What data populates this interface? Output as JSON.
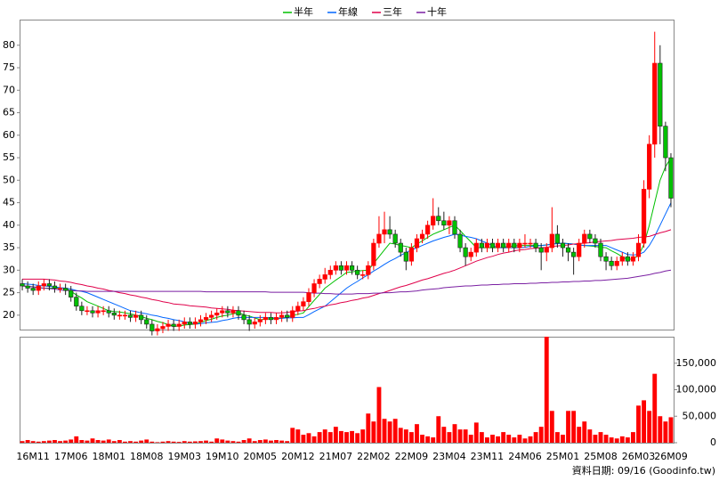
{
  "chart_data": {
    "type": "candlestick",
    "categories": [
      null,
      null,
      "16M11",
      null,
      null,
      null,
      null,
      null,
      null,
      "17M06",
      null,
      null,
      null,
      null,
      null,
      null,
      "18M01",
      null,
      null,
      null,
      null,
      null,
      null,
      "18M08",
      null,
      null,
      null,
      null,
      null,
      null,
      "19M03",
      null,
      null,
      null,
      null,
      null,
      null,
      "19M10",
      null,
      null,
      null,
      null,
      null,
      null,
      "20M05",
      null,
      null,
      null,
      null,
      null,
      null,
      "20M12",
      null,
      null,
      null,
      null,
      null,
      null,
      "21M07",
      null,
      null,
      null,
      null,
      null,
      null,
      "22M02",
      null,
      null,
      null,
      null,
      null,
      null,
      "22M09",
      null,
      null,
      null,
      null,
      null,
      null,
      "23M04",
      null,
      null,
      null,
      null,
      null,
      null,
      "23M11",
      null,
      null,
      null,
      null,
      null,
      null,
      "24M06",
      null,
      null,
      null,
      null,
      null,
      null,
      "25M01",
      null,
      null,
      null,
      null,
      null,
      null,
      "25M08",
      null,
      null,
      null,
      null,
      null,
      null,
      "26M03",
      null,
      null,
      null,
      null,
      null,
      "26M09"
    ],
    "ohlc": [
      [
        27,
        28,
        25.5,
        26.5
      ],
      [
        26.5,
        27.5,
        25,
        26
      ],
      [
        26,
        27,
        24.5,
        25.5
      ],
      [
        25.5,
        27.5,
        24.5,
        26.5
      ],
      [
        26.5,
        28,
        25.5,
        27
      ],
      [
        27,
        28,
        25.5,
        26.5
      ],
      [
        26.5,
        27.5,
        25,
        26
      ],
      [
        26,
        27,
        25,
        26
      ],
      [
        26,
        27,
        24.5,
        25.5
      ],
      [
        25.5,
        26.5,
        23,
        24
      ],
      [
        24,
        25,
        21,
        22
      ],
      [
        22,
        23,
        20,
        21
      ],
      [
        21,
        22,
        20,
        21
      ],
      [
        21,
        22,
        19.5,
        20.5
      ],
      [
        20.5,
        22,
        19.5,
        21
      ],
      [
        21,
        22,
        20,
        21
      ],
      [
        21,
        22,
        19.5,
        20.5
      ],
      [
        20.5,
        21.5,
        19,
        20
      ],
      [
        20,
        21,
        19,
        20
      ],
      [
        20,
        21,
        19,
        20
      ],
      [
        20,
        21,
        18.5,
        19.5
      ],
      [
        19.5,
        21,
        18.5,
        20
      ],
      [
        20,
        21,
        18,
        19
      ],
      [
        19,
        20,
        17,
        18
      ],
      [
        18,
        19,
        15.5,
        16.5
      ],
      [
        16.5,
        18,
        15.5,
        17
      ],
      [
        17,
        18.5,
        16,
        17.5
      ],
      [
        17.5,
        19,
        16.5,
        18
      ],
      [
        18,
        19,
        16.5,
        17.5
      ],
      [
        17.5,
        19,
        16.5,
        18
      ],
      [
        18,
        19.5,
        17,
        18.5
      ],
      [
        18.5,
        19.5,
        17,
        18
      ],
      [
        18,
        19.5,
        17,
        18.5
      ],
      [
        18.5,
        20,
        17.5,
        19
      ],
      [
        19,
        20.5,
        18,
        19.5
      ],
      [
        19.5,
        21,
        18.5,
        20
      ],
      [
        20,
        21.5,
        19,
        20.5
      ],
      [
        20.5,
        22,
        19.5,
        21
      ],
      [
        21,
        22,
        19.5,
        20.5
      ],
      [
        20.5,
        22,
        19.5,
        21
      ],
      [
        21,
        22,
        19,
        20
      ],
      [
        20,
        21,
        18,
        19
      ],
      [
        19,
        20,
        16.5,
        18
      ],
      [
        18,
        19.5,
        17,
        18.5
      ],
      [
        18.5,
        20,
        17.5,
        19
      ],
      [
        19,
        20.5,
        18,
        19.5
      ],
      [
        19.5,
        20.5,
        18,
        19
      ],
      [
        19,
        20.5,
        18,
        19.5
      ],
      [
        19.5,
        21,
        18.5,
        20
      ],
      [
        20,
        21,
        18.5,
        19.5
      ],
      [
        19.5,
        22,
        18.5,
        21
      ],
      [
        21,
        23,
        20,
        22
      ],
      [
        22,
        24,
        21,
        23
      ],
      [
        23,
        26,
        22,
        25
      ],
      [
        25,
        28,
        24,
        27
      ],
      [
        27,
        29,
        26,
        28
      ],
      [
        28,
        30.5,
        27,
        29
      ],
      [
        29,
        31,
        28,
        30
      ],
      [
        30,
        32,
        29,
        31
      ],
      [
        31,
        32,
        29,
        30
      ],
      [
        30,
        32,
        29,
        31
      ],
      [
        31,
        32,
        29,
        30
      ],
      [
        30,
        31,
        28,
        29
      ],
      [
        29,
        30,
        28,
        29
      ],
      [
        29,
        32,
        28,
        31
      ],
      [
        31,
        37,
        30,
        36
      ],
      [
        36,
        42,
        35,
        38
      ],
      [
        38,
        43,
        36,
        39
      ],
      [
        39,
        42,
        37,
        38
      ],
      [
        38,
        39,
        35,
        36
      ],
      [
        36,
        37,
        33,
        34
      ],
      [
        34,
        35,
        30,
        32
      ],
      [
        32,
        36,
        31,
        35
      ],
      [
        35,
        38,
        34,
        37
      ],
      [
        37,
        39,
        36,
        38
      ],
      [
        38,
        41,
        37,
        40
      ],
      [
        40,
        46,
        39,
        42
      ],
      [
        42,
        44,
        40,
        41
      ],
      [
        41,
        43,
        39,
        40
      ],
      [
        40,
        42,
        38,
        41
      ],
      [
        41,
        42,
        37,
        38
      ],
      [
        38,
        39,
        34,
        35
      ],
      [
        35,
        36,
        31,
        33
      ],
      [
        33,
        35,
        32,
        34
      ],
      [
        34,
        37,
        33,
        36
      ],
      [
        36,
        37,
        34,
        35
      ],
      [
        35,
        37,
        34,
        36
      ],
      [
        36,
        37,
        34,
        35
      ],
      [
        35,
        37,
        34,
        36
      ],
      [
        36,
        37,
        34,
        35
      ],
      [
        35,
        37,
        34,
        36
      ],
      [
        36,
        37,
        34,
        35
      ],
      [
        35,
        37,
        34,
        36
      ],
      [
        36,
        38,
        35,
        36
      ],
      [
        36,
        37,
        35,
        36
      ],
      [
        36,
        37,
        34,
        35
      ],
      [
        35,
        36,
        30,
        34
      ],
      [
        34,
        36,
        32,
        35
      ],
      [
        35,
        44,
        34,
        38
      ],
      [
        38,
        40,
        35,
        36
      ],
      [
        36,
        37,
        33,
        35
      ],
      [
        35,
        36,
        32,
        34
      ],
      [
        34,
        35,
        29,
        33
      ],
      [
        33,
        37,
        32,
        36
      ],
      [
        36,
        39,
        35,
        38
      ],
      [
        38,
        39,
        36,
        37
      ],
      [
        37,
        38,
        35,
        36
      ],
      [
        36,
        37,
        32,
        33
      ],
      [
        33,
        34,
        30,
        32
      ],
      [
        32,
        33,
        30,
        31
      ],
      [
        31,
        33,
        30,
        32
      ],
      [
        32,
        34,
        31,
        33
      ],
      [
        33,
        34,
        31,
        32
      ],
      [
        32,
        34,
        31,
        33
      ],
      [
        33,
        38,
        32,
        36
      ],
      [
        36,
        50,
        35,
        48
      ],
      [
        48,
        60,
        46,
        58
      ],
      [
        58,
        83,
        55,
        76
      ],
      [
        76,
        80,
        58,
        62
      ],
      [
        62,
        63,
        52,
        55
      ],
      [
        55,
        56,
        44,
        46
      ]
    ],
    "up_color": "#ff0000",
    "down_color": "#00c000",
    "ylim": [
      16.8,
      85.7
    ],
    "yticks": [
      20,
      25,
      30,
      35,
      40,
      45,
      50,
      55,
      60,
      65,
      70,
      75,
      80
    ],
    "series": [
      {
        "name": "半年",
        "color": "#00c000",
        "values": [
          26.5,
          26.4,
          26.3,
          26.1,
          26,
          26,
          26,
          26,
          26,
          25.3,
          24.5,
          23.8,
          23,
          22.5,
          22,
          21.5,
          21,
          20.8,
          20.7,
          20.5,
          20.3,
          20,
          19.7,
          19.3,
          19,
          18.6,
          18.3,
          17.9,
          17.5,
          17.6,
          17.8,
          17.9,
          18,
          18.4,
          18.8,
          19.1,
          19.5,
          19.8,
          20,
          20.3,
          20.5,
          20.1,
          19.8,
          19.4,
          19,
          19.1,
          19.2,
          19.2,
          19.3,
          19.6,
          19.9,
          20.2,
          20.5,
          21.9,
          23.3,
          24.6,
          26,
          26.9,
          27.8,
          28.6,
          29.5,
          29.6,
          29.8,
          29.9,
          30,
          31.5,
          33,
          34.5,
          36,
          35.8,
          35.5,
          35.3,
          35,
          35.8,
          36.5,
          37.3,
          38,
          38.5,
          39,
          39.5,
          40,
          38.8,
          37.5,
          36.3,
          35,
          35,
          35,
          35,
          35,
          35.1,
          35.3,
          35.4,
          35.5,
          35.5,
          35.5,
          35.5,
          35.5,
          35.6,
          35.8,
          35.9,
          36,
          35.9,
          35.8,
          35.6,
          35.5,
          35.4,
          35.3,
          35.1,
          35,
          34.3,
          33.7,
          33,
          32.3,
          32.6,
          33.2,
          35.7,
          40,
          45,
          50,
          53,
          55
        ]
      },
      {
        "name": "年線",
        "color": "#0066ff",
        "values": [
          27,
          26.9,
          26.8,
          26.6,
          26.5,
          26.4,
          26.3,
          26.1,
          26,
          25.8,
          25.5,
          25.3,
          25,
          24.5,
          24,
          23.5,
          23,
          22.5,
          22,
          21.5,
          21,
          20.8,
          20.5,
          20.3,
          20,
          19.8,
          19.5,
          19.3,
          19,
          18.8,
          18.5,
          18.3,
          18,
          18.1,
          18.3,
          18.4,
          18.5,
          18.8,
          19,
          19.3,
          19.5,
          19.5,
          19.5,
          19.5,
          19.5,
          19.5,
          19.4,
          19.4,
          19.3,
          19.4,
          19.4,
          19.5,
          19.5,
          20.1,
          20.8,
          21.4,
          22,
          23,
          24,
          25,
          26,
          26.8,
          27.5,
          28.3,
          29,
          29.8,
          30.5,
          31.3,
          32,
          32.6,
          33.3,
          33.9,
          34.5,
          35,
          35.5,
          36,
          36.5,
          36.9,
          37.3,
          37.6,
          38,
          37.8,
          37.5,
          37.3,
          37,
          36.5,
          36,
          35.5,
          35,
          35,
          35,
          35,
          35,
          35.1,
          35.3,
          35.4,
          35.5,
          35.6,
          35.8,
          35.9,
          36,
          35.9,
          35.8,
          35.6,
          35.5,
          35.5,
          35.5,
          35.5,
          35.5,
          35,
          34.5,
          34,
          33.5,
          33.4,
          33.5,
          34,
          35.5,
          37.5,
          40,
          42.5,
          45
        ]
      },
      {
        "name": "三年",
        "color": "#e0004a",
        "values": [
          28,
          28,
          28,
          28,
          28,
          27.9,
          27.8,
          27.6,
          27.5,
          27.3,
          27,
          26.8,
          26.5,
          26.3,
          26,
          25.8,
          25.5,
          25.3,
          25,
          24.8,
          24.5,
          24.3,
          24,
          23.8,
          23.5,
          23.3,
          23,
          22.8,
          22.5,
          22.4,
          22.3,
          22.1,
          22,
          21.9,
          21.8,
          21.6,
          21.5,
          21.4,
          21.3,
          21.1,
          21,
          20.9,
          20.8,
          20.7,
          20.6,
          20.6,
          20.6,
          20.5,
          20.5,
          20.6,
          20.8,
          20.9,
          21,
          21.3,
          21.5,
          21.8,
          22,
          22.3,
          22.5,
          22.8,
          23,
          23.3,
          23.5,
          23.8,
          24,
          24.4,
          24.8,
          25.1,
          25.5,
          25.9,
          26.3,
          26.6,
          27,
          27.4,
          27.8,
          28.1,
          28.5,
          28.9,
          29.3,
          29.6,
          30,
          30.5,
          31,
          31.5,
          32,
          32.4,
          32.8,
          33.1,
          33.5,
          33.8,
          34,
          34.3,
          34.5,
          34.6,
          34.8,
          34.9,
          35,
          35.1,
          35.3,
          35.4,
          35.5,
          35.6,
          35.8,
          35.9,
          36,
          36.1,
          36.3,
          36.4,
          36.5,
          36.6,
          36.8,
          36.9,
          37,
          37.1,
          37.3,
          37.4,
          37.5,
          37.9,
          38.3,
          38.6,
          39
        ]
      },
      {
        "name": "十年",
        "color": "#7a1fa2",
        "values": [
          26.5,
          26.4,
          26.3,
          26.1,
          26,
          25.9,
          25.8,
          25.6,
          25.5,
          25.5,
          25.4,
          25.4,
          25.3,
          25.3,
          25.3,
          25.3,
          25.3,
          25.3,
          25.3,
          25.3,
          25.3,
          25.3,
          25.3,
          25.3,
          25.3,
          25.3,
          25.3,
          25.3,
          25.3,
          25.3,
          25.3,
          25.3,
          25.3,
          25.3,
          25.2,
          25.2,
          25.2,
          25.2,
          25.2,
          25.2,
          25.2,
          25.2,
          25.2,
          25.2,
          25.2,
          25.2,
          25.1,
          25.1,
          25.1,
          25.1,
          25.1,
          25.1,
          25.1,
          25,
          24.9,
          24.9,
          24.8,
          24.8,
          24.7,
          24.7,
          24.7,
          24.7,
          24.8,
          24.8,
          24.8,
          24.9,
          24.9,
          25,
          25,
          25.1,
          25.2,
          25.2,
          25.3,
          25.4,
          25.6,
          25.7,
          25.8,
          25.9,
          26.1,
          26.2,
          26.3,
          26.4,
          26.5,
          26.5,
          26.6,
          26.7,
          26.7,
          26.8,
          26.8,
          26.9,
          26.9,
          27,
          27,
          27,
          27.1,
          27.1,
          27.2,
          27.2,
          27.3,
          27.3,
          27.4,
          27.4,
          27.5,
          27.5,
          27.6,
          27.6,
          27.7,
          27.7,
          27.8,
          27.9,
          28,
          28.1,
          28.2,
          28.4,
          28.6,
          28.8,
          29,
          29.3,
          29.5,
          29.8,
          30
        ]
      }
    ],
    "volume": {
      "color": "#ff0000",
      "values": [
        3000,
        5000,
        3000,
        2000,
        3000,
        4000,
        5000,
        3000,
        4000,
        6000,
        12000,
        5000,
        4000,
        8000,
        5000,
        4000,
        6000,
        3000,
        5000,
        2000,
        3000,
        2000,
        4000,
        6000,
        2000,
        1000,
        2000,
        3000,
        2000,
        1500,
        3000,
        2000,
        2500,
        3000,
        4000,
        2000,
        8000,
        6000,
        4000,
        3000,
        2000,
        5000,
        8000,
        3000,
        5000,
        6000,
        4000,
        5000,
        4000,
        3000,
        28000,
        25000,
        15000,
        18000,
        12000,
        20000,
        25000,
        20000,
        30000,
        22000,
        20000,
        22000,
        18000,
        25000,
        55000,
        40000,
        105000,
        45000,
        40000,
        45000,
        28000,
        25000,
        20000,
        35000,
        15000,
        12000,
        10000,
        50000,
        30000,
        20000,
        35000,
        25000,
        25000,
        15000,
        38000,
        20000,
        10000,
        15000,
        12000,
        20000,
        15000,
        10000,
        15000,
        8000,
        12000,
        20000,
        30000,
        200000,
        60000,
        20000,
        15000,
        60000,
        60000,
        30000,
        40000,
        25000,
        15000,
        20000,
        15000,
        10000,
        8000,
        12000,
        10000,
        20000,
        70000,
        80000,
        60000,
        130000,
        50000,
        40000,
        48000
      ],
      "ylim": [
        0,
        200000
      ],
      "yticks": [
        0,
        {
          "value": 50000,
          "label": "50,000"
        },
        {
          "value": 100000,
          "label": "100,000"
        },
        {
          "value": 150000,
          "label": "150,000"
        }
      ]
    },
    "footer": "資料日期: 09/16 (Goodinfo.tw)"
  }
}
